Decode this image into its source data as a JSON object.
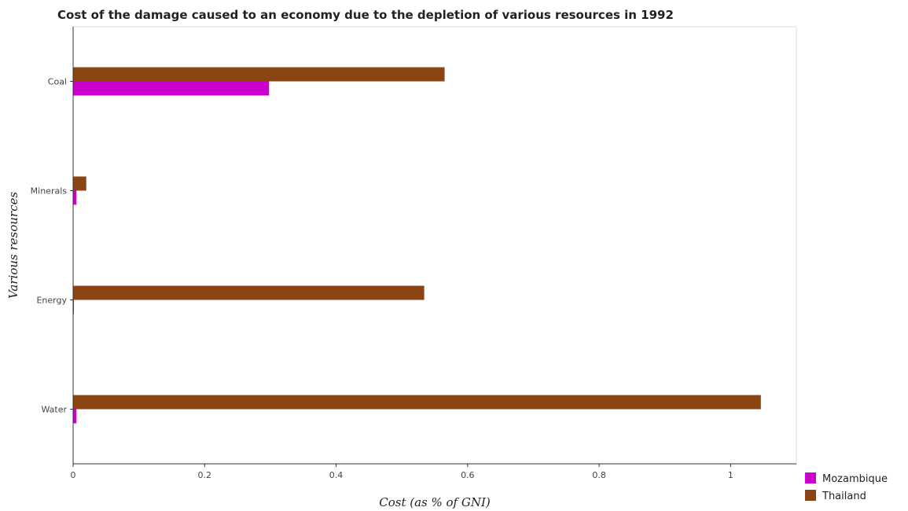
{
  "chart_data": {
    "type": "bar",
    "orientation": "horizontal",
    "title": "Cost of the damage caused to an economy due to the depletion of various resources in 1992",
    "xlabel": "Cost (as % of GNI)",
    "ylabel": "Various resources",
    "categories": [
      "Coal",
      "Minerals",
      "Energy",
      "Water"
    ],
    "series": [
      {
        "name": "Mozambique",
        "color": "#cc00cc",
        "values": [
          0.298,
          0.005,
          0.001,
          0.005
        ]
      },
      {
        "name": "Thailand",
        "color": "#8b4513",
        "values": [
          0.565,
          0.02,
          0.534,
          1.046
        ]
      }
    ],
    "xlim": [
      0,
      1.1
    ],
    "xticks": [
      0,
      0.2,
      0.4,
      0.6,
      0.8,
      1.0
    ],
    "xtick_labels": [
      "0",
      "0.2",
      "0.4",
      "0.6",
      "0.8",
      "1"
    ],
    "grid": false,
    "legend_position": "bottom-right"
  }
}
